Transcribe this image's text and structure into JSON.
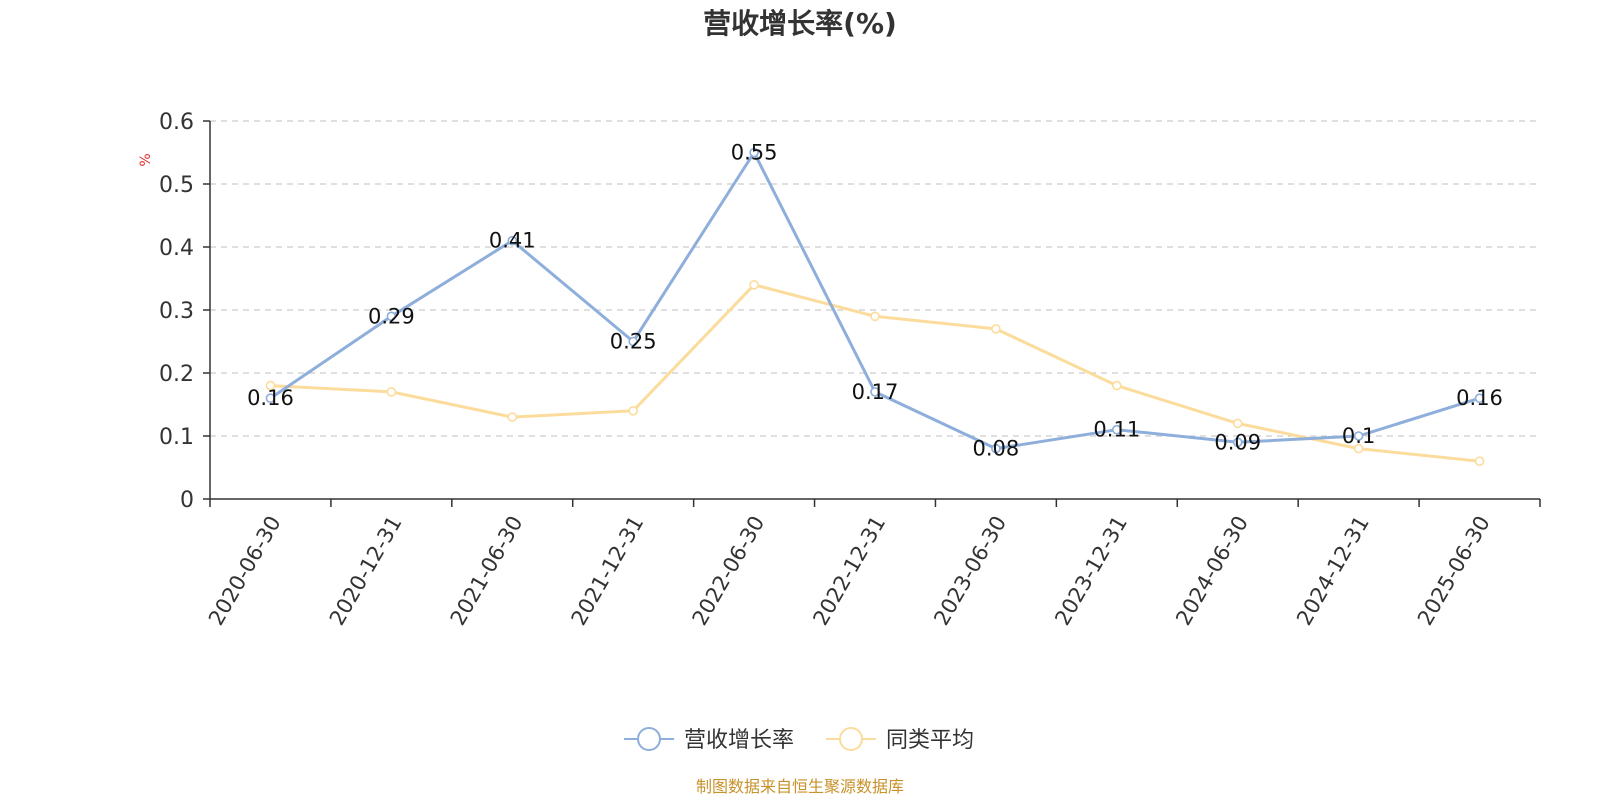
{
  "title": "营收增长率(%)",
  "source": "制图数据来自恒生聚源数据库",
  "colors": {
    "series1": "#8eaedb",
    "series2": "#fcdc9c",
    "unit": "#e03030",
    "source": "#c8922a",
    "grid": "#cccccc",
    "axis": "#333333"
  },
  "chart_data": {
    "type": "line",
    "title": "营收增长率(%)",
    "ylabel": "%",
    "ylim": [
      0,
      0.6
    ],
    "yticks": [
      0,
      0.1,
      0.2,
      0.3,
      0.4,
      0.5,
      0.6
    ],
    "grid": true,
    "legend_position": "bottom-center",
    "categories": [
      "2020-06-30",
      "2020-12-31",
      "2021-06-30",
      "2021-12-31",
      "2022-06-30",
      "2022-12-31",
      "2023-06-30",
      "2023-12-31",
      "2024-06-30",
      "2024-12-31",
      "2025-06-30"
    ],
    "series": [
      {
        "name": "营收增长率",
        "color": "#8eaedb",
        "values": [
          0.16,
          0.29,
          0.41,
          0.25,
          0.55,
          0.17,
          0.08,
          0.11,
          0.09,
          0.1,
          0.16
        ],
        "labels": [
          "0.16",
          "0.29",
          "0.41",
          "0.25",
          "0.55",
          "0.17",
          "0.08",
          "0.11",
          "0.09",
          "0.1",
          "0.16"
        ]
      },
      {
        "name": "同类平均",
        "color": "#fcdc9c",
        "values": [
          0.18,
          0.17,
          0.13,
          0.14,
          0.34,
          0.29,
          0.27,
          0.18,
          0.12,
          0.08,
          0.06
        ]
      }
    ]
  }
}
